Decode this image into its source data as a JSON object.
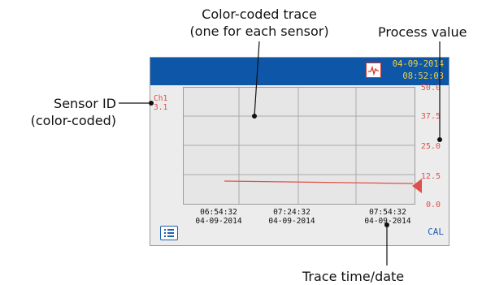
{
  "callouts": {
    "trace_line1": "Color-coded trace",
    "trace_line2": "(one for each sensor)",
    "process_value": "Process value",
    "sensor_line1": "Sensor ID",
    "sensor_line2": "(color-coded)",
    "time_date": "Trace time/date"
  },
  "screen": {
    "date": "04-09-2014",
    "time": "08:52:03",
    "channel": "Ch1",
    "channel_value": "3.1",
    "y_ticks": [
      "50.0",
      "37.5",
      "25.0",
      "12.5",
      "0.0"
    ],
    "x_ticks": [
      {
        "time": "06:54:32",
        "date": "04-09-2014"
      },
      {
        "time": "07:24:32",
        "date": "04-09-2014"
      },
      {
        "time": "07:54:32",
        "date": "04-09-2014"
      }
    ],
    "cal_label": "CAL",
    "icons": {
      "trend": "trend-chart-icon",
      "menu": "menu-list-icon",
      "marker": "process-value-marker-icon"
    }
  },
  "colors": {
    "header": "#0e57a8",
    "datetime": "#f2d23c",
    "trace": "#e0504a",
    "accent": "#1b5fb0"
  }
}
